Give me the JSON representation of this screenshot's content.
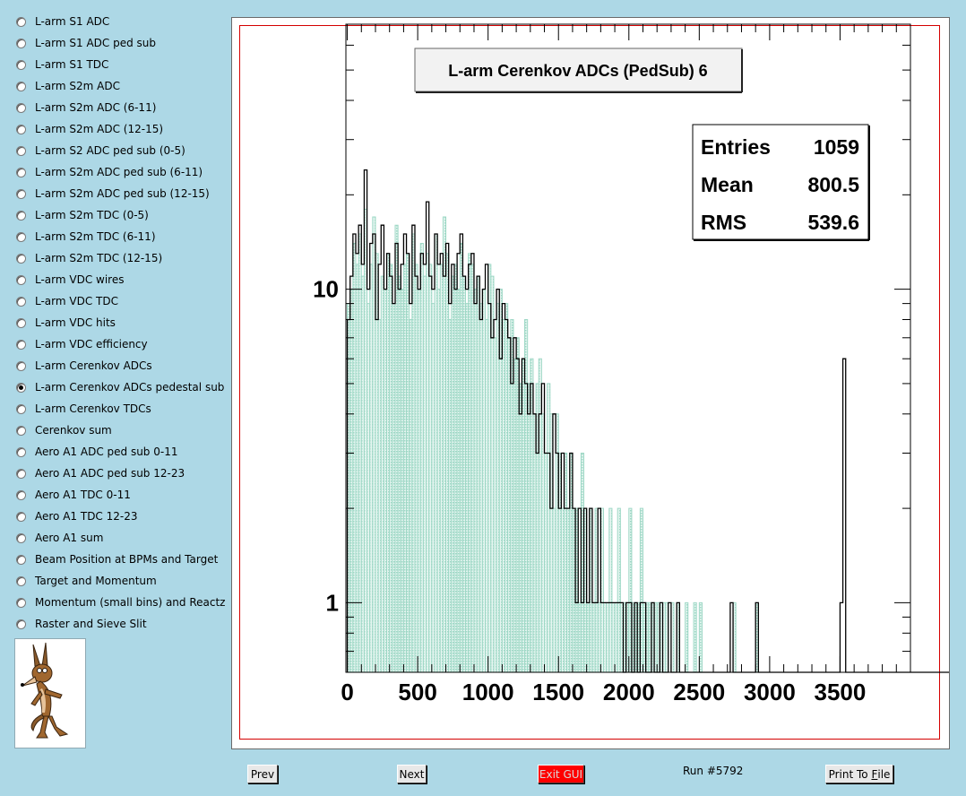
{
  "sidebar": {
    "selected_index": 17,
    "items": [
      "L-arm S1 ADC",
      "L-arm S1 ADC ped sub",
      "L-arm S1 TDC",
      "L-arm S2m ADC",
      "L-arm S2m ADC (6-11)",
      "L-arm S2m ADC (12-15)",
      "L-arm S2 ADC ped sub (0-5)",
      "L-arm S2m ADC ped sub (6-11)",
      "L-arm S2m ADC ped sub (12-15)",
      "L-arm S2m TDC (0-5)",
      "L-arm S2m TDC (6-11)",
      "L-arm S2m TDC (12-15)",
      "L-arm VDC wires",
      "L-arm VDC TDC",
      "L-arm VDC hits",
      "L-arm VDC efficiency",
      "L-arm Cerenkov ADCs",
      "L-arm Cerenkov ADCs pedestal sub",
      "L-arm Cerenkov TDCs",
      "Cerenkov sum",
      "Aero A1 ADC ped sub 0-11",
      "Aero A1 ADC ped sub 12-23",
      "Aero A1 TDC 0-11",
      "Aero A1 TDC 12-23",
      "Aero A1 sum",
      "Beam Position at BPMs and Target",
      "Target and Momentum",
      "Momentum (small bins) and Reactz",
      "Raster and Sieve Slit"
    ]
  },
  "logo_icon": "wile-e-coyote-icon",
  "buttons": {
    "prev": "Prev",
    "next": "Next",
    "exit": "Exit GUI",
    "print_pre": "Print To ",
    "print_u": "F",
    "print_post": "ile"
  },
  "run_label": "Run #5792",
  "colors": {
    "background": "#add8e6",
    "frame_border": "#d40000",
    "fill_series": "#9fd8c6",
    "exit_button": "#ff0000"
  },
  "chart_data": {
    "type": "histogram",
    "title": "L-arm Cerenkov ADCs (PedSub) 6",
    "y_scale": "log",
    "xlim": [
      -10,
      4000
    ],
    "ylim": [
      0.6,
      70
    ],
    "x_ticks": [
      0,
      500,
      1000,
      1500,
      2000,
      2500,
      3000,
      3500
    ],
    "y_tick_labels": [
      {
        "value": 1,
        "label": "1"
      },
      {
        "value": 10,
        "label": "10"
      }
    ],
    "stats": [
      {
        "label": "Entries",
        "value": "1059"
      },
      {
        "label": "Mean",
        "value": "800.5"
      },
      {
        "label": "RMS",
        "value": "539.6"
      }
    ],
    "series": [
      {
        "style": "filled-histogram",
        "color": "#9fd8c6",
        "bin_width": 20,
        "x_start": 0,
        "values": [
          9,
          10,
          14,
          12,
          15,
          11,
          18,
          9,
          12,
          17,
          13,
          8,
          11,
          10,
          13,
          12,
          9,
          16,
          11,
          10,
          12,
          13,
          8,
          15,
          12,
          10,
          14,
          11,
          13,
          12,
          9,
          15,
          10,
          12,
          17,
          13,
          8,
          11,
          12,
          10,
          14,
          11,
          9,
          13,
          12,
          10,
          11,
          9,
          10,
          8,
          12,
          11,
          7,
          9,
          10,
          8,
          9,
          7,
          8,
          6,
          7,
          5,
          6,
          8,
          5,
          6,
          4,
          5,
          6,
          4,
          3,
          5,
          4,
          2,
          4,
          3,
          2,
          3,
          2,
          3,
          2,
          2,
          1,
          3,
          2,
          1,
          2,
          1,
          2,
          1,
          2,
          1,
          1,
          2,
          1,
          1,
          2,
          1,
          1,
          1,
          2,
          1,
          1,
          1,
          2,
          1,
          1,
          1,
          1,
          1,
          1,
          1,
          1,
          1,
          0,
          1,
          0,
          1,
          0,
          0,
          1,
          0,
          0,
          1,
          0,
          1,
          0,
          0,
          0,
          0,
          0,
          0,
          0,
          0,
          0,
          0,
          0,
          1,
          0,
          0,
          0,
          0,
          0,
          0,
          0,
          1,
          0,
          0,
          0,
          0,
          0,
          0,
          0,
          0,
          0,
          0,
          0,
          0,
          0,
          0,
          0,
          0,
          0,
          0,
          0,
          0,
          0,
          0,
          0,
          0,
          0,
          0,
          0,
          0,
          0,
          0,
          0,
          0,
          0,
          0,
          0,
          0,
          0,
          0,
          0,
          0,
          0,
          0,
          0,
          0,
          0,
          0,
          0,
          0,
          0,
          0,
          0,
          0,
          0,
          0,
          0,
          0,
          0,
          0,
          0,
          0,
          0,
          0,
          0,
          0,
          0,
          0,
          0,
          0,
          0,
          0
        ]
      },
      {
        "style": "step-line",
        "color": "#000000",
        "bin_width": 20,
        "x_start": 0,
        "values": [
          8,
          11,
          15,
          13,
          16,
          12,
          24,
          10,
          14,
          15,
          8,
          12,
          16,
          10,
          13,
          11,
          9,
          14,
          10,
          12,
          15,
          13,
          9,
          16,
          11,
          10,
          13,
          12,
          19,
          11,
          10,
          15,
          12,
          13,
          11,
          14,
          9,
          12,
          10,
          13,
          15,
          11,
          10,
          12,
          13,
          9,
          11,
          8,
          10,
          12,
          9,
          7,
          8,
          10,
          6,
          9,
          8,
          7,
          5,
          7,
          6,
          4,
          6,
          5,
          4,
          5,
          4,
          3,
          4,
          5,
          3,
          3,
          2,
          4,
          3,
          2,
          3,
          2,
          2,
          3,
          2,
          1,
          2,
          1,
          2,
          1,
          2,
          1,
          1,
          2,
          1,
          1,
          1,
          1,
          1,
          1,
          1,
          1,
          0,
          1,
          1,
          0,
          1,
          0,
          1,
          1,
          0,
          0,
          1,
          0,
          0,
          1,
          0,
          0,
          1,
          0,
          0,
          1,
          0,
          0,
          0,
          0,
          0,
          0,
          0,
          0,
          0,
          0,
          0,
          0,
          0,
          0,
          0,
          0,
          0,
          0,
          1,
          0,
          0,
          0,
          0,
          0,
          0,
          0,
          0,
          1,
          0,
          0,
          0,
          0,
          0,
          0,
          0,
          0,
          0,
          0,
          0,
          0,
          0,
          0,
          0,
          0,
          0,
          0,
          0,
          0,
          0,
          0,
          0,
          0,
          0,
          0,
          0,
          0,
          0,
          1,
          6,
          0,
          0,
          0,
          0,
          0,
          0,
          0,
          0,
          0,
          0,
          0,
          0,
          0,
          0,
          0,
          0,
          0,
          0,
          0,
          0,
          0,
          0,
          0,
          0,
          0,
          0,
          0,
          0,
          0,
          0,
          0,
          0,
          0,
          0,
          0,
          0,
          0
        ]
      }
    ]
  }
}
